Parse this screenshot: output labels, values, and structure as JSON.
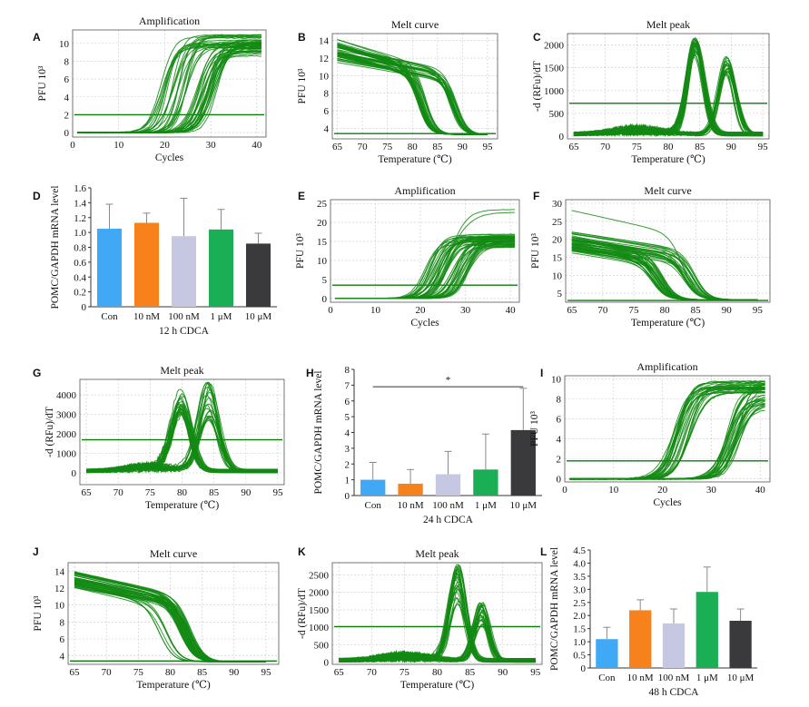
{
  "figure": {
    "panels": [
      {
        "label": "A",
        "kind": "amplification",
        "title": "Amplification",
        "xlabel": "Cycles",
        "ylabel": "PFU 10³",
        "xlim": [
          0,
          42
        ],
        "ylim": [
          -0.5,
          11.5
        ],
        "xticks": [
          0,
          10,
          20,
          30,
          40
        ],
        "yticks": [
          0,
          2,
          4,
          6,
          8,
          10
        ],
        "threshold": 2,
        "groups": [
          {
            "count": 22,
            "mid": [
              19,
              25
            ],
            "plateau": [
              9.5,
              11
            ],
            "slope": 1.2
          },
          {
            "count": 28,
            "mid": [
              27,
              32
            ],
            "plateau": [
              8.5,
              10.5
            ],
            "slope": 1.1
          }
        ]
      },
      {
        "label": "B",
        "kind": "melt-curve",
        "title": "Melt curve",
        "xlabel": "Temperature (℃)",
        "ylabel": "PFU 10³",
        "xlim": [
          64,
          97
        ],
        "ylim": [
          2.8,
          14.8
        ],
        "xticks": [
          65,
          70,
          75,
          80,
          85,
          90,
          95
        ],
        "yticks": [
          4,
          6,
          8,
          10,
          12,
          14
        ],
        "threshold": 3.4,
        "groups": [
          {
            "count": 30,
            "start": [
              12,
              14.2
            ],
            "drop": [
              81,
              83
            ],
            "end": 3.3
          },
          {
            "count": 22,
            "start": [
              11.5,
              13.5
            ],
            "drop": [
              87,
              89
            ],
            "end": 3.3
          }
        ]
      },
      {
        "label": "C",
        "kind": "melt-peak",
        "title": "Melt peak",
        "xlabel": "Temperature (℃)",
        "ylabel": "-d (RFu)/dT",
        "xlim": [
          64,
          96
        ],
        "ylim": [
          -60,
          2250
        ],
        "xticks": [
          65,
          70,
          75,
          80,
          85,
          90,
          95
        ],
        "yticks": [
          0,
          500,
          1000,
          1500,
          2000
        ],
        "threshold": 720,
        "groups": [
          {
            "count": 26,
            "peak": [
              84,
              84.6
            ],
            "height": [
              1700,
              2100
            ],
            "width": 1.3
          },
          {
            "count": 22,
            "peak": [
              89,
              89.6
            ],
            "height": [
              1300,
              1700
            ],
            "width": 1.3
          }
        ]
      },
      {
        "label": "D",
        "kind": "bar",
        "title": "",
        "xlabel": "12 h CDCA",
        "ylabel": "POMC/GAPDH mRNA level",
        "ylim": [
          0,
          1.6
        ],
        "yticks": [
          0,
          0.2,
          0.4,
          0.6,
          0.8,
          1.0,
          1.2,
          1.4,
          1.6
        ],
        "ytick_labels": [
          "0",
          "0.2",
          "0.4",
          "0.6",
          "0.8",
          "1.0",
          "1.2",
          "1.4",
          "1.6"
        ]
      },
      {
        "label": "E",
        "kind": "amplification",
        "title": "Amplification",
        "xlabel": "Cycles",
        "ylabel": "PFU 10³",
        "xlim": [
          0,
          42
        ],
        "ylim": [
          -1,
          26
        ],
        "xticks": [
          0,
          10,
          20,
          30,
          40
        ],
        "yticks": [
          0,
          5,
          10,
          15,
          20,
          25
        ],
        "threshold": 3.5,
        "groups": [
          {
            "count": 26,
            "mid": [
              21,
              26
            ],
            "plateau": [
              14,
              17
            ],
            "slope": 1.1
          },
          {
            "count": 22,
            "mid": [
              27,
              31
            ],
            "plateau": [
              13,
              16.5
            ],
            "slope": 1.1
          },
          {
            "count": 2,
            "mid": [
              25,
              27
            ],
            "plateau": [
              22,
              23.5
            ],
            "slope": 0.8
          }
        ]
      },
      {
        "label": "F",
        "kind": "melt-curve",
        "title": "Melt curve",
        "xlabel": "Temperature (℃)",
        "ylabel": "PFU 10³",
        "xlim": [
          64,
          97
        ],
        "ylim": [
          2.5,
          31
        ],
        "xticks": [
          65,
          70,
          75,
          80,
          85,
          90,
          95
        ],
        "yticks": [
          5,
          10,
          15,
          20,
          25,
          30
        ],
        "threshold": 3,
        "groups": [
          {
            "count": 30,
            "start": [
              16,
              21
            ],
            "drop": [
              78,
              80
            ],
            "end": 3.2
          },
          {
            "count": 22,
            "start": [
              17,
              22
            ],
            "drop": [
              83,
              85
            ],
            "end": 3.2
          },
          {
            "count": 1,
            "start": [
              28,
              28
            ],
            "drop": [
              83,
              83
            ],
            "end": 3.2
          }
        ]
      },
      {
        "label": "G",
        "kind": "melt-peak",
        "title": "Melt peak",
        "xlabel": "Temperature (℃)",
        "ylabel": "-d (RFu)/dT",
        "xlim": [
          64,
          96
        ],
        "ylim": [
          -600,
          4800
        ],
        "xticks": [
          65,
          70,
          75,
          80,
          85,
          90,
          95
        ],
        "yticks": [
          0,
          1000,
          2000,
          3000,
          4000
        ],
        "threshold": 1700,
        "groups": [
          {
            "count": 24,
            "peak": [
              79.5,
              80.2
            ],
            "height": [
              2800,
              4000
            ],
            "width": 1.5
          },
          {
            "count": 22,
            "peak": [
              83.8,
              84.5
            ],
            "height": [
              2600,
              4600
            ],
            "width": 1.5
          }
        ]
      },
      {
        "label": "H",
        "kind": "bar",
        "title": "",
        "xlabel": "24 h CDCA",
        "ylabel": "POMC/GAPDH mRNA level",
        "ylim": [
          0,
          8
        ],
        "yticks": [
          0,
          1,
          2,
          3,
          4,
          5,
          6,
          7,
          8
        ],
        "ytick_labels": [
          "0",
          "1",
          "2",
          "3",
          "4",
          "5",
          "6",
          "7",
          "8"
        ],
        "significance": {
          "from": 0,
          "to": 4,
          "y": 6.9,
          "mark": "*"
        }
      },
      {
        "label": "I",
        "kind": "amplification",
        "title": "Amplification",
        "xlabel": "Cycles",
        "ylabel": "PFU 10³",
        "xlim": [
          0,
          42
        ],
        "ylim": [
          -0.3,
          10.3
        ],
        "xticks": [
          0,
          10,
          20,
          30,
          40
        ],
        "yticks": [
          0,
          2,
          4,
          6,
          8,
          10
        ],
        "threshold": 1.8,
        "groups": [
          {
            "count": 26,
            "mid": [
              22,
              26
            ],
            "plateau": [
              8.5,
              9.8
            ],
            "slope": 1.1
          },
          {
            "count": 26,
            "mid": [
              33,
              36
            ],
            "plateau": [
              7,
              9.8
            ],
            "slope": 1.1
          }
        ]
      },
      {
        "label": "J",
        "kind": "melt-curve",
        "title": "Melt curve",
        "xlabel": "Temperature (℃)",
        "ylabel": "PFU 10³",
        "xlim": [
          64,
          97
        ],
        "ylim": [
          3,
          15
        ],
        "xticks": [
          65,
          70,
          75,
          80,
          85,
          90,
          95
        ],
        "yticks": [
          4,
          6,
          8,
          10,
          12,
          14
        ],
        "threshold": 3.4,
        "groups": [
          {
            "count": 40,
            "start": [
              12,
              14
            ],
            "drop": [
              81.5,
              83.5
            ],
            "end": 3.3
          },
          {
            "count": 6,
            "start": [
              12,
              13
            ],
            "drop": [
              78,
              80
            ],
            "end": 3.3
          }
        ]
      },
      {
        "label": "K",
        "kind": "melt-peak",
        "title": "Melt peak",
        "xlabel": "Temperature (℃)",
        "ylabel": "-d (RFu)/dT",
        "xlim": [
          64,
          96
        ],
        "ylim": [
          -60,
          2850
        ],
        "xticks": [
          65,
          70,
          75,
          80,
          85,
          90,
          95
        ],
        "yticks": [
          0,
          500,
          1000,
          1500,
          2000,
          2500
        ],
        "threshold": 1020,
        "groups": [
          {
            "count": 26,
            "peak": [
              82.8,
              83.4
            ],
            "height": [
              1500,
              2750
            ],
            "width": 1.2
          },
          {
            "count": 24,
            "peak": [
              86.5,
              87
            ],
            "height": [
              1000,
              1700
            ],
            "width": 1.1
          }
        ]
      },
      {
        "label": "L",
        "kind": "bar",
        "title": "",
        "xlabel": "48 h CDCA",
        "ylabel": "POMC/GAPDH mRNA level",
        "ylim": [
          0,
          4.5
        ],
        "yticks": [
          0,
          0.5,
          1.0,
          1.5,
          2.0,
          2.5,
          3.0,
          3.5,
          4.0,
          4.5
        ],
        "ytick_labels": [
          "0",
          "0.5",
          "1.0",
          "1.5",
          "2.0",
          "2.5",
          "3.0",
          "3.5",
          "4.0",
          "4.5"
        ]
      }
    ]
  },
  "chart_data": [
    {
      "type": "bar",
      "panel": "D",
      "xlabel": "12 h CDCA",
      "ylabel": "POMC/GAPDH mRNA level",
      "ylim": [
        0,
        1.6
      ],
      "categories": [
        "Con",
        "10 nM",
        "100 nM",
        "1 μM",
        "10 μM"
      ],
      "values": [
        1.05,
        1.13,
        0.95,
        1.04,
        0.85
      ],
      "errors": [
        0.33,
        0.13,
        0.51,
        0.27,
        0.14
      ],
      "colors": [
        "#3fa9f5",
        "#f7821b",
        "#c6c7e1",
        "#1aaf54",
        "#3a3a3c"
      ]
    },
    {
      "type": "bar",
      "panel": "H",
      "xlabel": "24 h CDCA",
      "ylabel": "POMC/GAPDH mRNA level",
      "ylim": [
        0,
        8
      ],
      "categories": [
        "Con",
        "10 nM",
        "100 nM",
        "1 μM",
        "10 μM"
      ],
      "values": [
        1.0,
        0.75,
        1.35,
        1.65,
        4.15
      ],
      "errors": [
        1.1,
        0.9,
        1.45,
        2.25,
        2.65
      ],
      "colors": [
        "#3fa9f5",
        "#f7821b",
        "#c6c7e1",
        "#1aaf54",
        "#3a3a3c"
      ],
      "annotation": "*"
    },
    {
      "type": "bar",
      "panel": "L",
      "xlabel": "48 h CDCA",
      "ylabel": "POMC/GAPDH mRNA level",
      "ylim": [
        0,
        4.5
      ],
      "categories": [
        "Con",
        "10 nM",
        "100 nM",
        "1 μM",
        "10 μM"
      ],
      "values": [
        1.1,
        2.2,
        1.7,
        2.9,
        1.8
      ],
      "errors": [
        0.45,
        0.4,
        0.55,
        0.95,
        0.45
      ],
      "colors": [
        "#3fa9f5",
        "#f7821b",
        "#c6c7e1",
        "#1aaf54",
        "#3a3a3c"
      ]
    }
  ]
}
